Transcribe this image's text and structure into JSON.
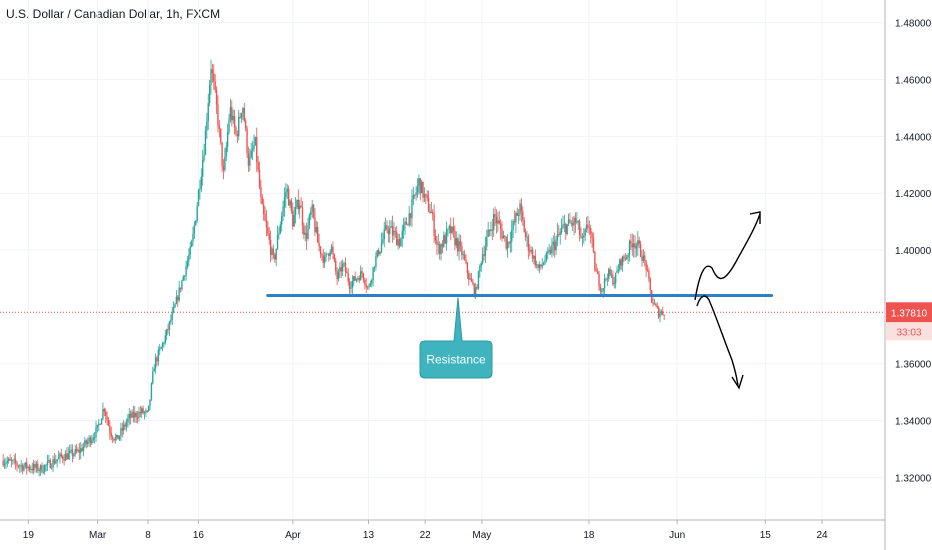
{
  "header": {
    "title": "U.S. Dollar / Canadian Dollar, 1h, FXCM"
  },
  "chart_data": {
    "type": "candlestick",
    "title": "U.S. Dollar / Canadian Dollar, 1h, FXCM",
    "ylim": [
      1.305,
      1.488
    ],
    "y_ticks": [
      "1.48000",
      "1.46000",
      "1.44000",
      "1.42000",
      "1.40000",
      "1.36000",
      "1.34000",
      "1.32000"
    ],
    "y_tick_values": [
      1.48,
      1.46,
      1.44,
      1.42,
      1.4,
      1.36,
      1.34,
      1.32
    ],
    "x_ticks": [
      "19",
      "Mar",
      "8",
      "16",
      "Apr",
      "13",
      "22",
      "May",
      "18",
      "Jun",
      "15",
      "24"
    ],
    "x_tick_days": [
      -11,
      0,
      8,
      16,
      31,
      43,
      52,
      61,
      78,
      92,
      106,
      115
    ],
    "xlim": [
      -15.5,
      125.0
    ],
    "price_path": [
      [
        -15,
        1.326
      ],
      [
        -12,
        1.324
      ],
      [
        -9,
        1.323
      ],
      [
        -6,
        1.327
      ],
      [
        -3,
        1.329
      ],
      [
        -1,
        1.334
      ],
      [
        0,
        1.337
      ],
      [
        1,
        1.345
      ],
      [
        2,
        1.336
      ],
      [
        3,
        1.333
      ],
      [
        4,
        1.337
      ],
      [
        5,
        1.341
      ],
      [
        7,
        1.343
      ],
      [
        8,
        1.342
      ],
      [
        9,
        1.36
      ],
      [
        10,
        1.365
      ],
      [
        11,
        1.371
      ],
      [
        12,
        1.378
      ],
      [
        13,
        1.386
      ],
      [
        14,
        1.394
      ],
      [
        15,
        1.402
      ],
      [
        16,
        1.42
      ],
      [
        17,
        1.438
      ],
      [
        18,
        1.465
      ],
      [
        19,
        1.448
      ],
      [
        20,
        1.426
      ],
      [
        21,
        1.45
      ],
      [
        22,
        1.44
      ],
      [
        23,
        1.452
      ],
      [
        24,
        1.43
      ],
      [
        25,
        1.438
      ],
      [
        26,
        1.415
      ],
      [
        27,
        1.405
      ],
      [
        28,
        1.396
      ],
      [
        29,
        1.41
      ],
      [
        30,
        1.422
      ],
      [
        31,
        1.41
      ],
      [
        32,
        1.418
      ],
      [
        33,
        1.404
      ],
      [
        34,
        1.414
      ],
      [
        35,
        1.402
      ],
      [
        36,
        1.396
      ],
      [
        37,
        1.402
      ],
      [
        38,
        1.39
      ],
      [
        39,
        1.395
      ],
      [
        40,
        1.388
      ],
      [
        42,
        1.392
      ],
      [
        43,
        1.386
      ],
      [
        44,
        1.396
      ],
      [
        46,
        1.408
      ],
      [
        48,
        1.403
      ],
      [
        50,
        1.416
      ],
      [
        51,
        1.424
      ],
      [
        52,
        1.418
      ],
      [
        53,
        1.413
      ],
      [
        54,
        1.4
      ],
      [
        56,
        1.407
      ],
      [
        58,
        1.398
      ],
      [
        59,
        1.39
      ],
      [
        60,
        1.385
      ],
      [
        61,
        1.398
      ],
      [
        63,
        1.412
      ],
      [
        65,
        1.402
      ],
      [
        67,
        1.415
      ],
      [
        68,
        1.404
      ],
      [
        70,
        1.393
      ],
      [
        72,
        1.4
      ],
      [
        74,
        1.408
      ],
      [
        76,
        1.41
      ],
      [
        77,
        1.402
      ],
      [
        78,
        1.41
      ],
      [
        79,
        1.393
      ],
      [
        80,
        1.386
      ],
      [
        81,
        1.392
      ],
      [
        82,
        1.389
      ],
      [
        83,
        1.396
      ],
      [
        84,
        1.398
      ],
      [
        85,
        1.404
      ],
      [
        86,
        1.4
      ],
      [
        87,
        1.395
      ],
      [
        88,
        1.382
      ],
      [
        89,
        1.378
      ],
      [
        90,
        1.3781
      ]
    ],
    "current_price": "1.37810",
    "countdown": "33:03",
    "resistance": {
      "price": 1.384,
      "start_day": 27,
      "end_day": 107
    },
    "annotation": {
      "label": "Resistance"
    },
    "colors": {
      "up": "#26a69a",
      "down": "#ef5350",
      "resistance_line": "#2f7fc4",
      "callout": "#3fb4bf",
      "price_tag": "#ef5350",
      "grid": "#f0f3fa"
    }
  }
}
